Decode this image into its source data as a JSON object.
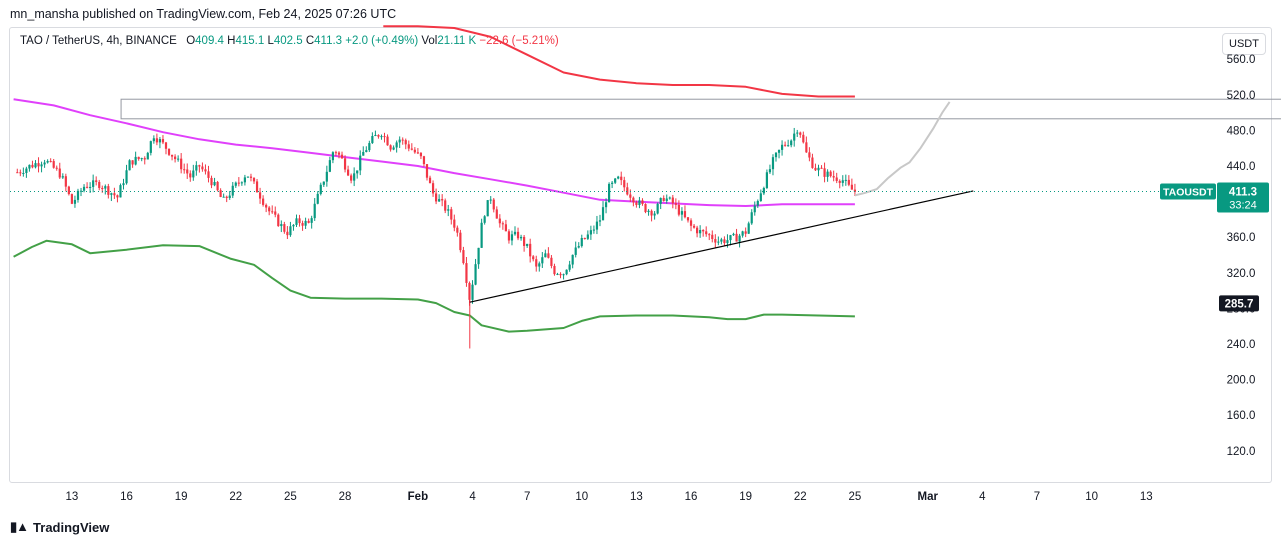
{
  "header": {
    "published": "mn_mansha published on TradingView.com, Feb 24, 2025 07:26 UTC"
  },
  "legend": {
    "symbol": "TAO / TetherUS, 4h, BINANCE",
    "o_label": "O",
    "o": "409.4",
    "h_label": "H",
    "h": "415.1",
    "l_label": "L",
    "l": "402.5",
    "c_label": "C",
    "c": "411.3",
    "change": "+2.0 (+0.49%)",
    "vol_label": "Vol",
    "vol": "21.11 K",
    "extra": "−22.6 (−5.21%)"
  },
  "price_axis": {
    "unit": "USDT",
    "current_symbol": "TAOUSDT",
    "current_price": "411.3",
    "countdown": "33:24",
    "marker_price": "285.7"
  },
  "footer": {
    "brand": "TradingView"
  },
  "colors": {
    "up": "#089981",
    "down": "#f23645",
    "upper_band": "#f23645",
    "lower_band": "#43a047",
    "mid_band": "#e040fb",
    "trendline": "#000000",
    "projection": "#c8c8c8",
    "current_line": "#089981"
  },
  "chart_data": {
    "type": "candlestick",
    "title": "",
    "xlabel": "",
    "ylabel": "",
    "ylim": [
      85,
      595
    ],
    "y_ticks": [
      120,
      160,
      200,
      240,
      280,
      320,
      360,
      400,
      440,
      480,
      520,
      560
    ],
    "x_ticks": [
      "13",
      "16",
      "19",
      "22",
      "25",
      "28",
      "Feb",
      "4",
      "7",
      "10",
      "13",
      "16",
      "19",
      "22",
      "25",
      "Mar",
      "4",
      "7",
      "10",
      "13"
    ],
    "x_tick_days": [
      -19,
      -16,
      -13,
      -10,
      -7,
      -4,
      0,
      3,
      6,
      9,
      12,
      15,
      18,
      21,
      24,
      28,
      31,
      34,
      37,
      40
    ],
    "x_range_days": [
      -22.4,
      43.5
    ],
    "price_path": [
      [
        -22.0,
        433
      ],
      [
        -21.3,
        440
      ],
      [
        -20.5,
        447
      ],
      [
        -19.6,
        430
      ],
      [
        -19.0,
        398
      ],
      [
        -18.3,
        418
      ],
      [
        -17.5,
        420
      ],
      [
        -16.5,
        405
      ],
      [
        -15.8,
        445
      ],
      [
        -15.0,
        450
      ],
      [
        -14.5,
        475
      ],
      [
        -13.8,
        460
      ],
      [
        -13.2,
        445
      ],
      [
        -12.5,
        428
      ],
      [
        -12.0,
        440
      ],
      [
        -11.3,
        422
      ],
      [
        -10.7,
        400
      ],
      [
        -10.0,
        418
      ],
      [
        -9.4,
        432
      ],
      [
        -8.8,
        412
      ],
      [
        -8.2,
        390
      ],
      [
        -7.6,
        375
      ],
      [
        -7.2,
        365
      ],
      [
        -6.6,
        378
      ],
      [
        -6.0,
        375
      ],
      [
        -5.5,
        405
      ],
      [
        -5.0,
        435
      ],
      [
        -4.6,
        460
      ],
      [
        -4.1,
        445
      ],
      [
        -3.6,
        425
      ],
      [
        -3.0,
        455
      ],
      [
        -2.4,
        472
      ],
      [
        -2.0,
        478
      ],
      [
        -1.5,
        462
      ],
      [
        -1.0,
        470
      ],
      [
        -0.5,
        462
      ],
      [
        0.2,
        448
      ],
      [
        0.8,
        410
      ],
      [
        1.6,
        390
      ],
      [
        2.1,
        370
      ],
      [
        2.5,
        335
      ],
      [
        2.85,
        290
      ],
      [
        3.2,
        335
      ],
      [
        3.6,
        385
      ],
      [
        4.0,
        405
      ],
      [
        4.5,
        375
      ],
      [
        5.0,
        360
      ],
      [
        5.5,
        362
      ],
      [
        6.0,
        348
      ],
      [
        6.5,
        325
      ],
      [
        7.0,
        340
      ],
      [
        7.5,
        322
      ],
      [
        8.0,
        320
      ],
      [
        8.5,
        340
      ],
      [
        9.0,
        355
      ],
      [
        9.5,
        365
      ],
      [
        10.0,
        380
      ],
      [
        10.5,
        415
      ],
      [
        11.0,
        425
      ],
      [
        11.5,
        412
      ],
      [
        12.0,
        400
      ],
      [
        12.5,
        392
      ],
      [
        13.0,
        388
      ],
      [
        13.5,
        405
      ],
      [
        14.0,
        398
      ],
      [
        14.5,
        385
      ],
      [
        15.0,
        372
      ],
      [
        15.5,
        366
      ],
      [
        16.0,
        362
      ],
      [
        16.5,
        356
      ],
      [
        17.0,
        357
      ],
      [
        17.5,
        360
      ],
      [
        18.0,
        366
      ],
      [
        18.5,
        395
      ],
      [
        19.0,
        420
      ],
      [
        19.5,
        445
      ],
      [
        20.0,
        462
      ],
      [
        20.5,
        470
      ],
      [
        20.9,
        485
      ],
      [
        21.3,
        455
      ],
      [
        21.8,
        438
      ],
      [
        22.3,
        432
      ],
      [
        22.8,
        428
      ],
      [
        23.3,
        425
      ],
      [
        23.7,
        415
      ],
      [
        24.0,
        411.3
      ]
    ],
    "series": [
      {
        "name": "",
        "color": "#f23645",
        "x": [
          -1.9,
          0,
          2,
          4,
          6,
          8,
          10,
          12,
          14,
          16,
          18,
          20,
          22,
          24
        ],
        "y": [
          597,
          597,
          595,
          585,
          565,
          545,
          537,
          533,
          531,
          531,
          529,
          521,
          518,
          518
        ]
      },
      {
        "name": "",
        "color": "#e040fb",
        "x": [
          -22.2,
          -20,
          -18,
          -16,
          -14,
          -12,
          -10,
          -8,
          -6,
          -4,
          -2,
          0,
          2,
          4,
          6,
          8,
          10,
          12,
          14,
          16,
          18,
          20,
          22,
          24
        ],
        "y": [
          515,
          508,
          497,
          488,
          478,
          470,
          464,
          460,
          455,
          450,
          445,
          440,
          432,
          425,
          418,
          410,
          402,
          400,
          398,
          396,
          395,
          397,
          397,
          397
        ]
      },
      {
        "name": "",
        "color": "#43a047",
        "x": [
          -22.2,
          -21.2,
          -20.4,
          -19,
          -18,
          -16,
          -14,
          -12,
          -10.3,
          -9,
          -8,
          -7,
          -5.9,
          -4,
          -2,
          0,
          1,
          2,
          2.85,
          3.5,
          5,
          6,
          8,
          9,
          10,
          12,
          14,
          16,
          17,
          18,
          19,
          20,
          22,
          24
        ],
        "y": [
          338,
          349,
          356,
          352,
          342,
          346,
          351,
          350,
          336,
          329,
          314,
          300,
          292,
          291,
          291,
          290,
          286,
          276,
          272,
          261,
          254,
          255,
          258,
          266,
          271,
          272,
          272,
          270,
          268,
          268,
          273,
          273,
          272,
          271
        ]
      }
    ],
    "zones": [
      {
        "type": "rectangle",
        "x_start": -16.3,
        "x_end": 49.8,
        "y_top": 515,
        "y_bottom": 493
      }
    ],
    "trendline": [
      [
        2.85,
        287
      ],
      [
        30.5,
        412
      ]
    ],
    "projection": [
      [
        24.0,
        407
      ],
      [
        24.6,
        410
      ],
      [
        25.2,
        414
      ],
      [
        25.8,
        426
      ],
      [
        26.5,
        438
      ],
      [
        27.0,
        444
      ],
      [
        27.6,
        460
      ],
      [
        28.3,
        482
      ],
      [
        28.8,
        500
      ],
      [
        29.2,
        512
      ]
    ],
    "low_marker": {
      "x": 2.85,
      "y": 235
    },
    "last": 411.3
  }
}
